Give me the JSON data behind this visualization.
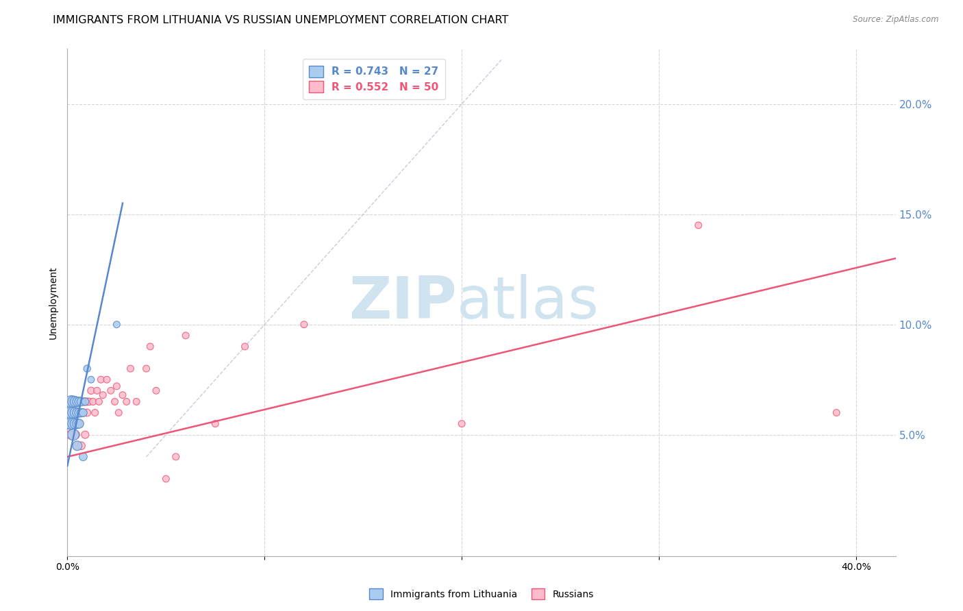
{
  "title": "IMMIGRANTS FROM LITHUANIA VS RUSSIAN UNEMPLOYMENT CORRELATION CHART",
  "source": "Source: ZipAtlas.com",
  "ylabel": "Unemployment",
  "watermark_zip": "ZIP",
  "watermark_atlas": "atlas",
  "xlim": [
    0.0,
    0.42
  ],
  "ylim": [
    -0.005,
    0.225
  ],
  "ytick_vals_right": [
    0.05,
    0.1,
    0.15,
    0.2
  ],
  "ytick_labels_right": [
    "5.0%",
    "10.0%",
    "15.0%",
    "20.0%"
  ],
  "xtick_positions": [
    0.0,
    0.1,
    0.2,
    0.3,
    0.4
  ],
  "xtick_labels": [
    "0.0%",
    "",
    "",
    "",
    "40.0%"
  ],
  "legend_entries": [
    {
      "label": "R = 0.743   N = 27",
      "color": "#5588cc"
    },
    {
      "label": "R = 0.552   N = 50",
      "color": "#ee5577"
    }
  ],
  "blue_scatter_x": [
    0.001,
    0.002,
    0.002,
    0.002,
    0.002,
    0.003,
    0.003,
    0.003,
    0.003,
    0.004,
    0.004,
    0.004,
    0.005,
    0.005,
    0.005,
    0.005,
    0.006,
    0.006,
    0.006,
    0.007,
    0.007,
    0.008,
    0.008,
    0.009,
    0.01,
    0.012,
    0.025
  ],
  "blue_scatter_y": [
    0.06,
    0.055,
    0.065,
    0.06,
    0.055,
    0.06,
    0.065,
    0.055,
    0.05,
    0.06,
    0.065,
    0.055,
    0.06,
    0.065,
    0.055,
    0.045,
    0.06,
    0.065,
    0.055,
    0.065,
    0.06,
    0.06,
    0.04,
    0.065,
    0.08,
    0.075,
    0.1
  ],
  "blue_scatter_sizes": [
    200,
    160,
    160,
    160,
    160,
    140,
    140,
    140,
    140,
    120,
    120,
    120,
    100,
    100,
    100,
    100,
    90,
    90,
    90,
    80,
    80,
    70,
    70,
    60,
    55,
    50,
    50
  ],
  "pink_scatter_x": [
    0.001,
    0.002,
    0.002,
    0.003,
    0.003,
    0.003,
    0.004,
    0.004,
    0.005,
    0.005,
    0.005,
    0.006,
    0.006,
    0.007,
    0.007,
    0.008,
    0.008,
    0.009,
    0.009,
    0.01,
    0.01,
    0.011,
    0.012,
    0.013,
    0.014,
    0.015,
    0.016,
    0.017,
    0.018,
    0.02,
    0.022,
    0.024,
    0.025,
    0.026,
    0.028,
    0.03,
    0.032,
    0.035,
    0.04,
    0.042,
    0.045,
    0.05,
    0.055,
    0.06,
    0.075,
    0.09,
    0.12,
    0.2,
    0.32,
    0.39
  ],
  "pink_scatter_y": [
    0.055,
    0.06,
    0.05,
    0.065,
    0.06,
    0.055,
    0.06,
    0.05,
    0.065,
    0.06,
    0.045,
    0.065,
    0.055,
    0.06,
    0.045,
    0.065,
    0.06,
    0.05,
    0.065,
    0.065,
    0.06,
    0.065,
    0.07,
    0.065,
    0.06,
    0.07,
    0.065,
    0.075,
    0.068,
    0.075,
    0.07,
    0.065,
    0.072,
    0.06,
    0.068,
    0.065,
    0.08,
    0.065,
    0.08,
    0.09,
    0.07,
    0.03,
    0.04,
    0.095,
    0.055,
    0.09,
    0.1,
    0.055,
    0.145,
    0.06
  ],
  "pink_scatter_sizes": [
    120,
    100,
    100,
    90,
    90,
    90,
    85,
    85,
    80,
    80,
    80,
    75,
    75,
    70,
    70,
    65,
    65,
    62,
    62,
    60,
    60,
    58,
    56,
    54,
    52,
    50,
    50,
    50,
    50,
    50,
    50,
    50,
    50,
    50,
    50,
    50,
    50,
    50,
    50,
    50,
    50,
    50,
    50,
    50,
    50,
    50,
    50,
    50,
    50,
    50
  ],
  "blue_line_x": [
    0.0,
    0.028
  ],
  "blue_line_y": [
    0.036,
    0.155
  ],
  "pink_line_x": [
    0.0,
    0.42
  ],
  "pink_line_y": [
    0.04,
    0.13
  ],
  "diag_line_x": [
    0.04,
    0.22
  ],
  "diag_line_y": [
    0.04,
    0.22
  ],
  "blue_color": "#5588cc",
  "pink_color": "#ee5577",
  "blue_scatter_face": "#aaccee",
  "pink_scatter_face": "#ffbbcc",
  "bg_color": "#ffffff",
  "grid_color": "#cccccc",
  "title_fontsize": 11.5,
  "label_fontsize": 10,
  "tick_fontsize": 10,
  "source_fontsize": 8.5
}
